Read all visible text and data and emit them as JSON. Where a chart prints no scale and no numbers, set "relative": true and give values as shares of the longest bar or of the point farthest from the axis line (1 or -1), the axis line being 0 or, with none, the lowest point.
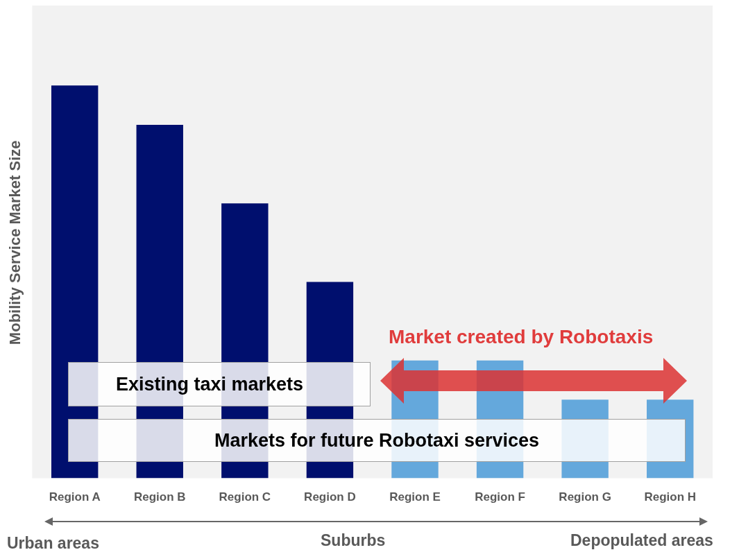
{
  "chart_data": {
    "type": "bar",
    "relative": true,
    "ylabel": "Mobility Service Market Size",
    "categories": [
      "Region A",
      "Region B",
      "Region C",
      "Region D",
      "Region E",
      "Region F",
      "Region G",
      "Region H"
    ],
    "values": [
      1,
      0.9,
      0.7,
      0.5,
      0.3,
      0.3,
      0.2,
      0.2
    ],
    "colors": [
      "#000f6e",
      "#000f6e",
      "#000f6e",
      "#000f6e",
      "#64a8dc",
      "#64a8dc",
      "#64a8dc",
      "#64a8dc"
    ],
    "annotations": [
      "Existing taxi markets",
      "Markets for future Robotaxi services",
      "Market created by Robotaxis",
      "Urban areas",
      "Suburbs",
      "Depopulated areas"
    ],
    "grid": false,
    "legend": false
  }
}
